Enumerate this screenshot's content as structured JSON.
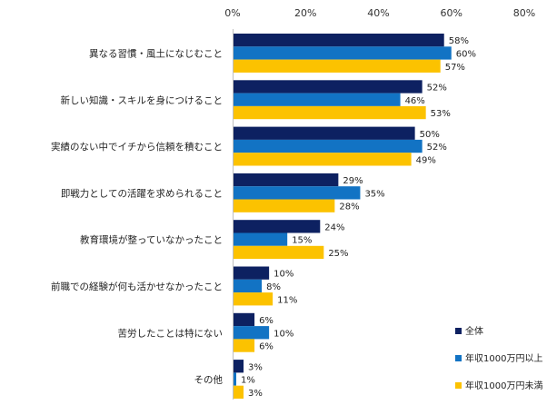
{
  "chart_data": {
    "type": "bar",
    "orientation": "horizontal",
    "x_ticks": [
      "0%",
      "20%",
      "40%",
      "60%",
      "80%"
    ],
    "xlim": [
      0,
      80
    ],
    "value_suffix": "%",
    "grid": false,
    "legend_position": "bottom-right",
    "categories": [
      "異なる習慣・風土になじむこと",
      "新しい知識・スキルを身につけること",
      "実績のない中でイチから信頼を積むこと",
      "即戦力としての活躍を求められること",
      "教育環境が整っていなかったこと",
      "前職での経験が何も活かせなかったこと",
      "苦労したことは特にない",
      "その他"
    ],
    "series": [
      {
        "name": "全体",
        "color": "#0d2161",
        "values": [
          58,
          52,
          50,
          29,
          24,
          10,
          6,
          3
        ]
      },
      {
        "name": "年収1000万円以上",
        "color": "#1273c4",
        "values": [
          60,
          46,
          52,
          35,
          15,
          8,
          10,
          1
        ]
      },
      {
        "name": "年収1000万円未満",
        "color": "#fcc200",
        "values": [
          57,
          53,
          49,
          28,
          25,
          11,
          6,
          3
        ]
      }
    ]
  }
}
